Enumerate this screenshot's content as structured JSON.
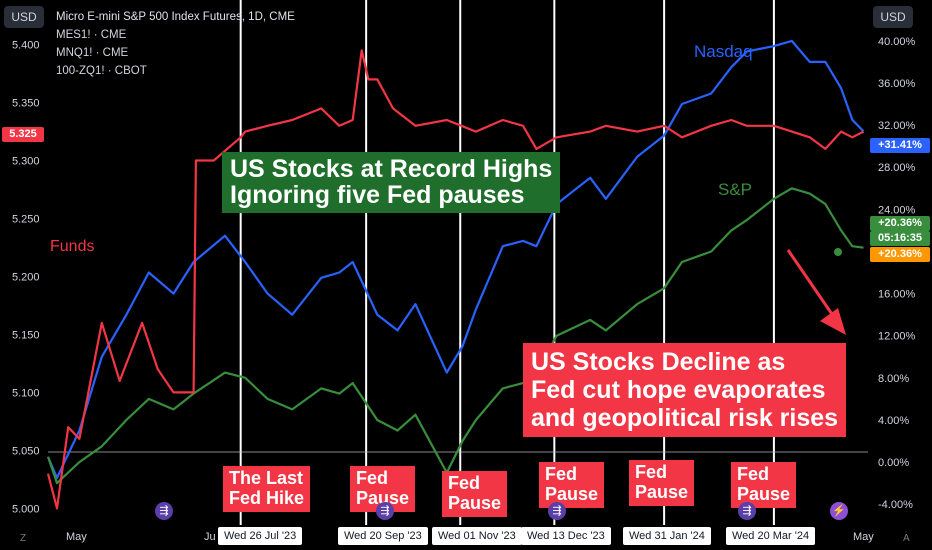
{
  "header": {
    "currency_left": "USD",
    "currency_right": "USD",
    "symbol_title": "Micro E-mini S&P 500 Index Futures, 1D, CME",
    "compare_symbols": [
      "MES1! · CME",
      "MNQ1! · CME",
      "100-ZQ1! · CBOT"
    ]
  },
  "callouts": {
    "record_highs": [
      "US Stocks at Record Highs",
      "Ignoring five Fed pauses"
    ],
    "decline": [
      "US Stocks Decline as",
      "Fed cut hope evaporates",
      "and geopolitical risk rises"
    ]
  },
  "fed_events": [
    {
      "label": [
        "The Last",
        "Fed Hike"
      ],
      "date": "Wed 26 Jul '23"
    },
    {
      "label": [
        "Fed",
        "Pause"
      ],
      "date": "Wed 20 Sep '23"
    },
    {
      "label": [
        "Fed",
        "Pause"
      ],
      "date": "Wed 01 Nov '23"
    },
    {
      "label": [
        "Fed",
        "Pause"
      ],
      "date": "Wed 13 Dec '23"
    },
    {
      "label": [
        "Fed",
        "Pause"
      ],
      "date": "Wed 31 Jan '24"
    },
    {
      "label": [
        "Fed",
        "Pause"
      ],
      "date": "Wed 20 Mar '24"
    }
  ],
  "x_axis_labels": {
    "start": "May",
    "end": "May",
    "partial": "Ju"
  },
  "series_labels": {
    "nasdaq": "Nasdaq",
    "sp": "S&P",
    "funds": "Funds"
  },
  "badges": {
    "left_price": "5.325",
    "nasdaq_pct": "+31.41%",
    "sp_pct": "+20.36%",
    "countdown": "05:16:35",
    "sp_pct2": "+20.36%"
  },
  "colors": {
    "nasdaq": "#2962ff",
    "sp": "#388e3c",
    "funds": "#f23645",
    "callout_green": "#1f6e2b",
    "callout_red": "#f23645"
  },
  "chart_data": {
    "type": "line",
    "left_axis": {
      "ticks": [
        "5.400",
        "5.350",
        "5.300",
        "5.250",
        "5.200",
        "5.150",
        "5.100",
        "5.050",
        "5.000"
      ],
      "range": [
        4.99,
        5.435
      ]
    },
    "right_axis": {
      "ticks": [
        "40.00%",
        "36.00%",
        "32.00%",
        "28.00%",
        "24.00%",
        "20.00%",
        "16.00%",
        "12.00%",
        "8.00%",
        "4.00%",
        "0.00%",
        "-4.00%"
      ],
      "range": [
        -5.5,
        43.5
      ]
    },
    "x_range": [
      "2023-05-01",
      "2024-05-01"
    ],
    "series": [
      {
        "name": "Nasdaq",
        "axis": "right",
        "points": [
          [
            "2023-05-01",
            0.5
          ],
          [
            "2023-05-05",
            -1.5
          ],
          [
            "2023-05-15",
            3
          ],
          [
            "2023-05-25",
            10
          ],
          [
            "2023-06-05",
            14
          ],
          [
            "2023-06-15",
            18
          ],
          [
            "2023-06-26",
            16
          ],
          [
            "2023-07-05",
            19
          ],
          [
            "2023-07-19",
            21.5
          ],
          [
            "2023-07-28",
            19
          ],
          [
            "2023-08-07",
            16
          ],
          [
            "2023-08-18",
            14
          ],
          [
            "2023-08-31",
            17.5
          ],
          [
            "2023-09-08",
            18
          ],
          [
            "2023-09-14",
            19
          ],
          [
            "2023-09-25",
            14
          ],
          [
            "2023-10-04",
            12.5
          ],
          [
            "2023-10-12",
            15
          ],
          [
            "2023-10-26",
            8.5
          ],
          [
            "2023-11-02",
            11
          ],
          [
            "2023-11-08",
            14.5
          ],
          [
            "2023-11-20",
            20.5
          ],
          [
            "2023-11-29",
            21
          ],
          [
            "2023-12-05",
            20.5
          ],
          [
            "2023-12-14",
            24.5
          ],
          [
            "2023-12-29",
            27
          ],
          [
            "2024-01-05",
            25
          ],
          [
            "2024-01-19",
            29
          ],
          [
            "2024-01-31",
            31
          ],
          [
            "2024-02-08",
            34
          ],
          [
            "2024-02-21",
            35
          ],
          [
            "2024-03-01",
            37.5
          ],
          [
            "2024-03-08",
            39
          ],
          [
            "2024-03-20",
            39.5
          ],
          [
            "2024-03-28",
            40
          ],
          [
            "2024-04-05",
            38
          ],
          [
            "2024-04-12",
            38
          ],
          [
            "2024-04-19",
            35.5
          ],
          [
            "2024-04-24",
            32.5
          ],
          [
            "2024-04-29",
            31.41
          ]
        ]
      },
      {
        "name": "S&P",
        "axis": "right",
        "points": [
          [
            "2023-05-01",
            0.5
          ],
          [
            "2023-05-05",
            -2
          ],
          [
            "2023-05-15",
            0
          ],
          [
            "2023-05-25",
            1.5
          ],
          [
            "2023-06-05",
            4
          ],
          [
            "2023-06-15",
            6
          ],
          [
            "2023-06-26",
            5
          ],
          [
            "2023-07-05",
            6.5
          ],
          [
            "2023-07-19",
            8.5
          ],
          [
            "2023-07-28",
            8
          ],
          [
            "2023-08-07",
            6
          ],
          [
            "2023-08-18",
            5
          ],
          [
            "2023-08-31",
            7
          ],
          [
            "2023-09-08",
            6.5
          ],
          [
            "2023-09-14",
            7.5
          ],
          [
            "2023-09-25",
            4
          ],
          [
            "2023-10-04",
            3
          ],
          [
            "2023-10-12",
            4.5
          ],
          [
            "2023-10-26",
            -1
          ],
          [
            "2023-11-02",
            2
          ],
          [
            "2023-11-08",
            4
          ],
          [
            "2023-11-20",
            7
          ],
          [
            "2023-11-29",
            7.5
          ],
          [
            "2023-12-05",
            8.5
          ],
          [
            "2023-12-14",
            12
          ],
          [
            "2023-12-29",
            13.5
          ],
          [
            "2024-01-05",
            12.5
          ],
          [
            "2024-01-19",
            15
          ],
          [
            "2024-01-31",
            16.5
          ],
          [
            "2024-02-08",
            19
          ],
          [
            "2024-02-21",
            20
          ],
          [
            "2024-03-01",
            22
          ],
          [
            "2024-03-08",
            23
          ],
          [
            "2024-03-20",
            25
          ],
          [
            "2024-03-28",
            26
          ],
          [
            "2024-04-05",
            25.5
          ],
          [
            "2024-04-12",
            24.5
          ],
          [
            "2024-04-19",
            22
          ],
          [
            "2024-04-24",
            20.5
          ],
          [
            "2024-04-29",
            20.36
          ]
        ]
      },
      {
        "name": "Funds",
        "axis": "left",
        "points": [
          [
            "2023-05-01",
            5.03
          ],
          [
            "2023-05-05",
            5.0
          ],
          [
            "2023-05-10",
            5.07
          ],
          [
            "2023-05-15",
            5.06
          ],
          [
            "2023-05-25",
            5.16
          ],
          [
            "2023-06-02",
            5.11
          ],
          [
            "2023-06-12",
            5.16
          ],
          [
            "2023-06-19",
            5.12
          ],
          [
            "2023-06-26",
            5.1
          ],
          [
            "2023-07-05",
            5.1
          ],
          [
            "2023-07-06",
            5.3
          ],
          [
            "2023-07-14",
            5.3
          ],
          [
            "2023-07-26",
            5.32
          ],
          [
            "2023-07-28",
            5.325
          ],
          [
            "2023-08-07",
            5.33
          ],
          [
            "2023-08-18",
            5.335
          ],
          [
            "2023-08-31",
            5.345
          ],
          [
            "2023-09-08",
            5.33
          ],
          [
            "2023-09-14",
            5.335
          ],
          [
            "2023-09-18",
            5.395
          ],
          [
            "2023-09-21",
            5.37
          ],
          [
            "2023-09-25",
            5.37
          ],
          [
            "2023-10-02",
            5.345
          ],
          [
            "2023-10-12",
            5.33
          ],
          [
            "2023-10-26",
            5.335
          ],
          [
            "2023-11-08",
            5.325
          ],
          [
            "2023-11-20",
            5.335
          ],
          [
            "2023-11-29",
            5.33
          ],
          [
            "2023-12-05",
            5.31
          ],
          [
            "2023-12-14",
            5.32
          ],
          [
            "2023-12-29",
            5.325
          ],
          [
            "2024-01-05",
            5.33
          ],
          [
            "2024-01-19",
            5.325
          ],
          [
            "2024-01-31",
            5.33
          ],
          [
            "2024-02-08",
            5.32
          ],
          [
            "2024-02-21",
            5.33
          ],
          [
            "2024-03-01",
            5.335
          ],
          [
            "2024-03-08",
            5.33
          ],
          [
            "2024-03-20",
            5.33
          ],
          [
            "2024-03-28",
            5.325
          ],
          [
            "2024-04-05",
            5.32
          ],
          [
            "2024-04-12",
            5.31
          ],
          [
            "2024-04-19",
            5.325
          ],
          [
            "2024-04-24",
            5.32
          ],
          [
            "2024-04-29",
            5.325
          ]
        ]
      }
    ],
    "event_lines": [
      "2023-07-26",
      "2023-09-20",
      "2023-11-01",
      "2023-12-13",
      "2024-01-31",
      "2024-03-20"
    ]
  }
}
